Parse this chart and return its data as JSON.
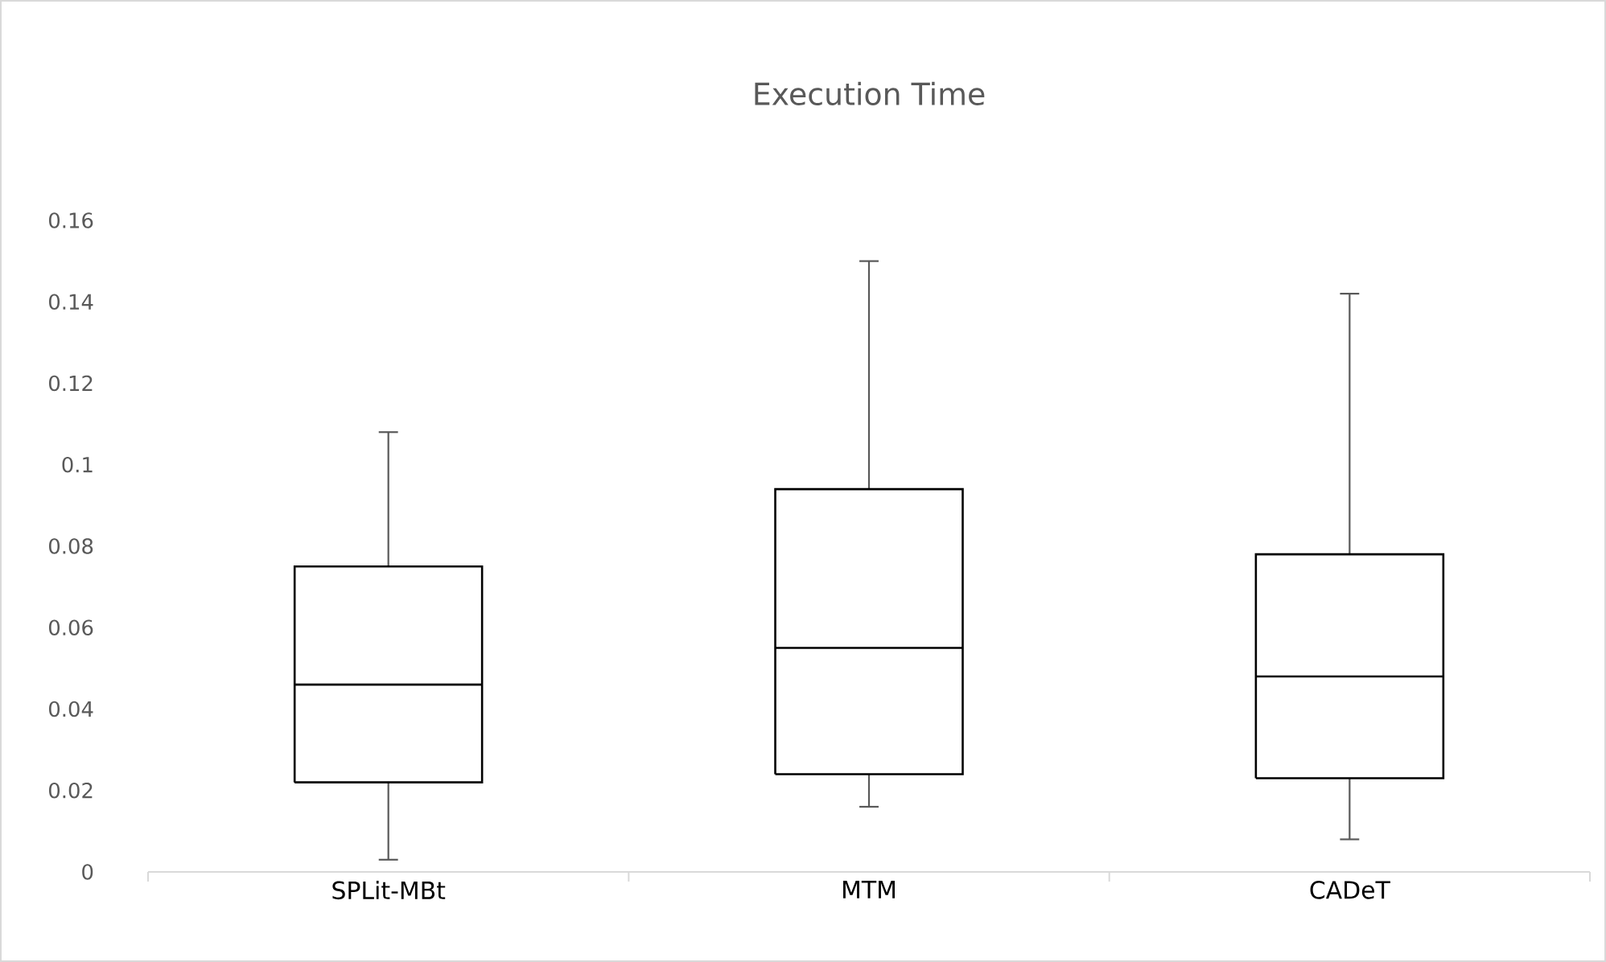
{
  "chart_data": {
    "type": "box",
    "title": "Execution Time",
    "categories": [
      "SPLit-MBt",
      "MTM",
      "CADeT"
    ],
    "boxes": [
      {
        "low": 0.003,
        "q1": 0.022,
        "median": 0.046,
        "q3": 0.075,
        "high": 0.108
      },
      {
        "low": 0.016,
        "q1": 0.024,
        "median": 0.055,
        "q3": 0.094,
        "high": 0.15
      },
      {
        "low": 0.008,
        "q1": 0.023,
        "median": 0.048,
        "q3": 0.078,
        "high": 0.142
      }
    ],
    "ylim": [
      0,
      0.16
    ],
    "yticks": [
      0,
      0.02,
      0.04,
      0.06,
      0.08,
      0.1,
      0.12,
      0.14,
      0.16
    ]
  }
}
